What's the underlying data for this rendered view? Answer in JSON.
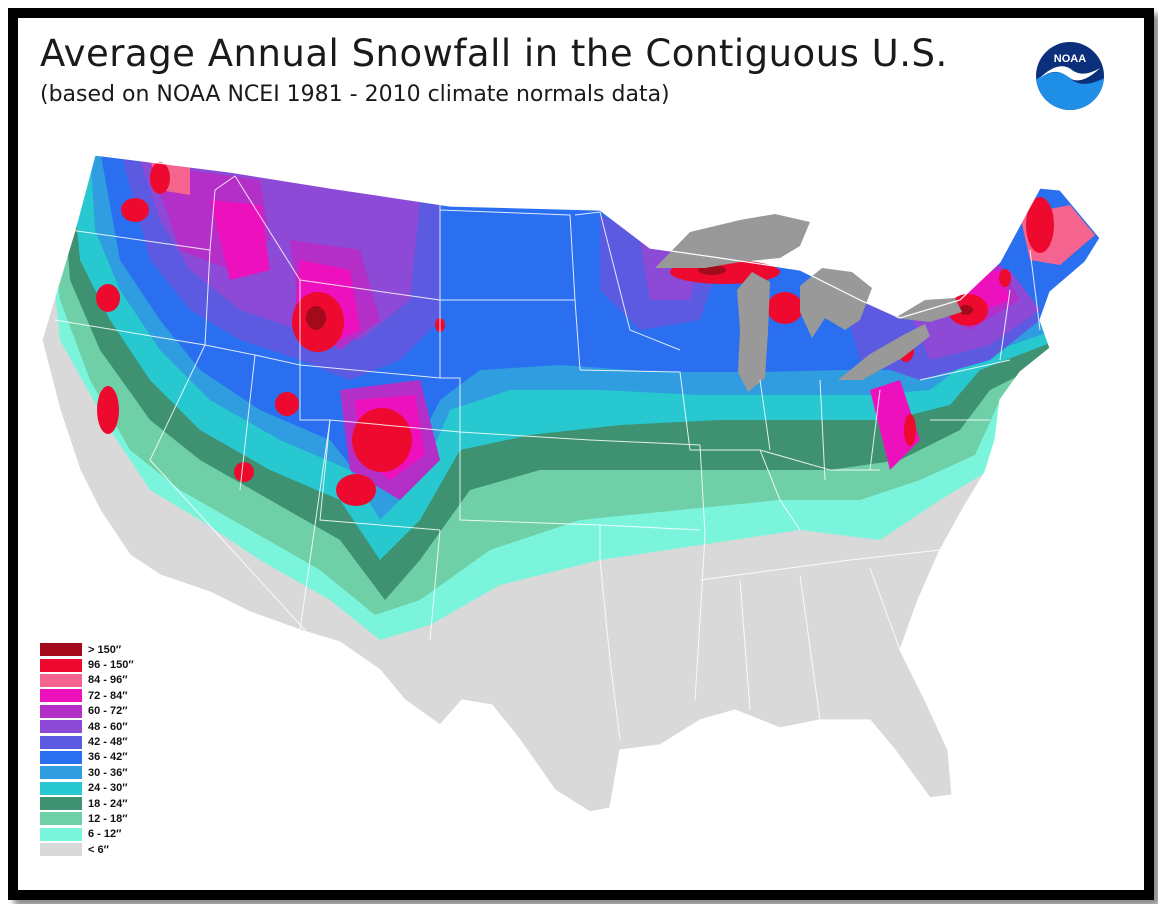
{
  "title": "Average Annual Snowfall in the Contiguous U.S.",
  "subtitle": "(based on NOAA NCEI 1981 - 2010 climate normals data)",
  "logo_text": "NOAA",
  "legend": [
    {
      "label": "> 150″",
      "color": "#a30a1c"
    },
    {
      "label": "96 - 150″",
      "color": "#ee0a2e"
    },
    {
      "label": "84 - 96″",
      "color": "#f5638f"
    },
    {
      "label": "72 - 84″",
      "color": "#ec11bc"
    },
    {
      "label": "60 - 72″",
      "color": "#b42fc8"
    },
    {
      "label": "48 - 60″",
      "color": "#8c4ad6"
    },
    {
      "label": "42 - 48″",
      "color": "#5b5ae0"
    },
    {
      "label": "36 - 42″",
      "color": "#2a6ff0"
    },
    {
      "label": "30 - 36″",
      "color": "#2f9de0"
    },
    {
      "label": "24 - 30″",
      "color": "#28c8d0"
    },
    {
      "label": "18 - 24″",
      "color": "#3e9272"
    },
    {
      "label": "12 - 18″",
      "color": "#6fd0a8"
    },
    {
      "label": "6 - 12″",
      "color": "#7af5dc"
    },
    {
      "label": "< 6″",
      "color": "#d9d9d9"
    }
  ],
  "colors": {
    "great_lakes": "#999999",
    "base_land": "#d9d9d9",
    "state_lines": "#ffffff",
    "noaa_blue": "#1f8ee6"
  }
}
